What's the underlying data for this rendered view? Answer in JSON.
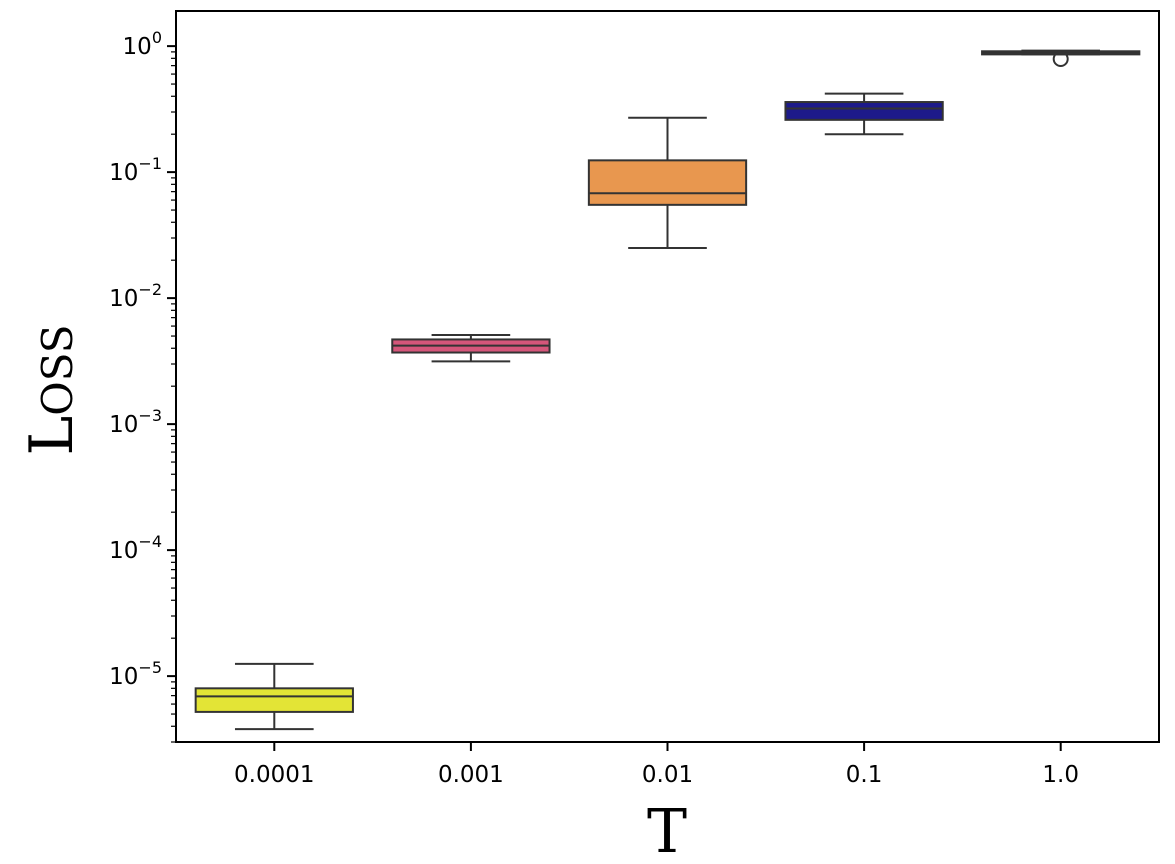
{
  "chart_data": {
    "type": "box",
    "xlabel": "T",
    "ylabel": "Loss",
    "yscale": "log",
    "ylim": [
      3e-06,
      1.9
    ],
    "categories": [
      "0.0001",
      "0.001",
      "0.01",
      "0.1",
      "1.0"
    ],
    "y_ticks": [
      {
        "value": 1e-05,
        "base": "10",
        "exp": "−5"
      },
      {
        "value": 0.0001,
        "base": "10",
        "exp": "−4"
      },
      {
        "value": 0.001,
        "base": "10",
        "exp": "−3"
      },
      {
        "value": 0.01,
        "base": "10",
        "exp": "−2"
      },
      {
        "value": 0.1,
        "base": "10",
        "exp": "−1"
      },
      {
        "value": 1,
        "base": "10",
        "exp": "0"
      }
    ],
    "boxes": [
      {
        "category": "0.0001",
        "whisker_low": 3.8e-06,
        "q1": 5.2e-06,
        "median": 6.9e-06,
        "q3": 8e-06,
        "whisker_high": 1.25e-05,
        "color": "#e3e436",
        "outliers": []
      },
      {
        "category": "0.001",
        "whisker_low": 0.00315,
        "q1": 0.0037,
        "median": 0.0042,
        "q3": 0.0047,
        "whisker_high": 0.0051,
        "color": "#d5567a",
        "outliers": []
      },
      {
        "category": "0.01",
        "whisker_low": 0.025,
        "q1": 0.055,
        "median": 0.068,
        "q3": 0.124,
        "whisker_high": 0.27,
        "color": "#e8974f",
        "outliers": []
      },
      {
        "category": "0.1",
        "whisker_low": 0.2,
        "q1": 0.26,
        "median": 0.32,
        "q3": 0.36,
        "whisker_high": 0.42,
        "color": "#1d1a8a",
        "outliers": []
      },
      {
        "category": "1.0",
        "whisker_low": 0.86,
        "q1": 0.86,
        "median": 0.88,
        "q3": 0.91,
        "whisker_high": 0.92,
        "color": "#222222",
        "outliers": [
          0.79
        ]
      }
    ],
    "grid": false,
    "legend": "none"
  }
}
